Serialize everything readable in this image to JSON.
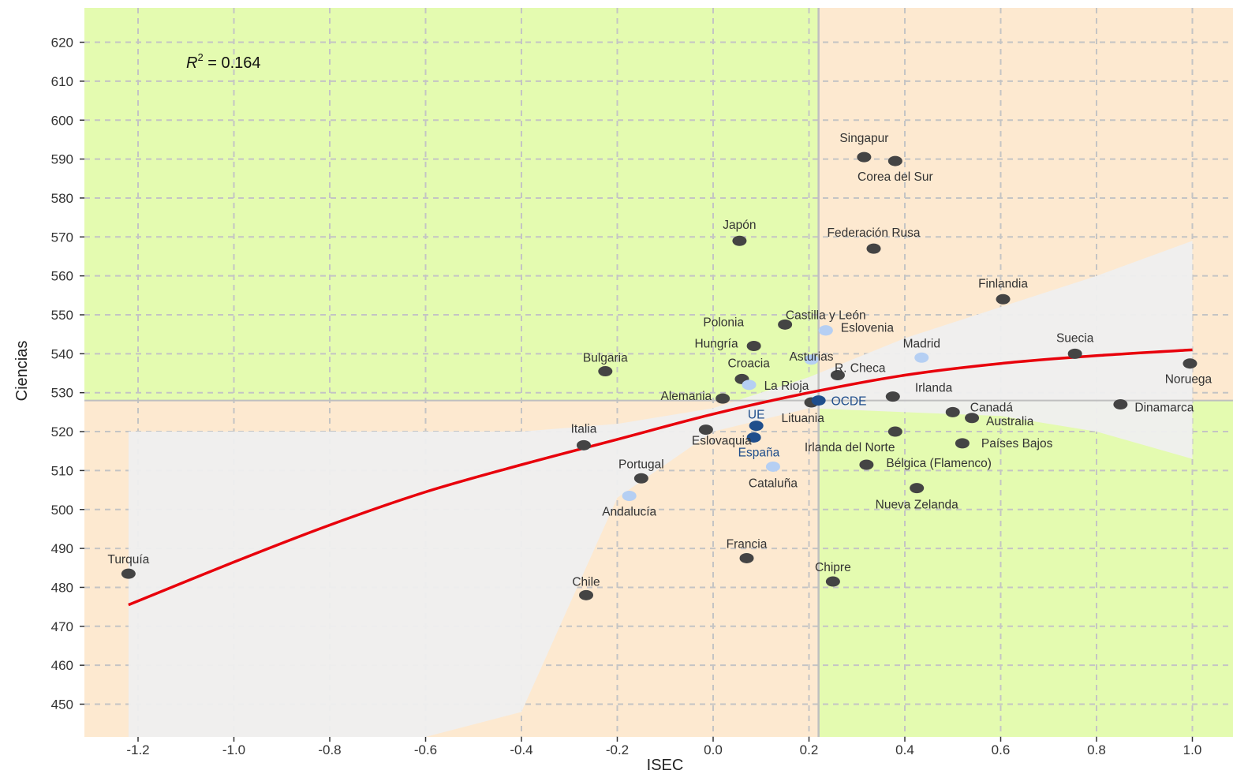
{
  "chart_data": {
    "type": "scatter",
    "title": "",
    "xlabel": "ISEC",
    "ylabel": "Ciencias",
    "xlim": [
      -1.3,
      1.08
    ],
    "ylim": [
      441,
      628
    ],
    "x_ticks": [
      -1.2,
      -1.0,
      -0.8,
      -0.6,
      -0.4,
      -0.2,
      0.0,
      0.2,
      0.4,
      0.6,
      0.8,
      1.0
    ],
    "x_tick_labels": [
      "-1.2",
      "-1.0",
      "-0.8",
      "-0.6",
      "-0.4",
      "-0.2",
      "0.0",
      "0.2",
      "0.4",
      "0.6",
      "0.8",
      "1.0"
    ],
    "y_ticks": [
      450,
      460,
      470,
      480,
      490,
      500,
      510,
      520,
      530,
      540,
      550,
      560,
      570,
      580,
      590,
      600,
      610,
      620
    ],
    "y_tick_labels": [
      "450",
      "460",
      "470",
      "480",
      "490",
      "500",
      "510",
      "520",
      "530",
      "540",
      "550",
      "560",
      "570",
      "580",
      "590",
      "600",
      "610",
      "620"
    ],
    "grid": true,
    "reference_lines": {
      "x": 0.22,
      "y": 528
    },
    "annotation": {
      "prefix": "R",
      "superscript": "2",
      "suffix": " = 0.164"
    },
    "colors": {
      "quadrant_green": "#e4fbb0",
      "quadrant_orange": "#fde9d0",
      "confidence_band": "#efefef",
      "fit_line": "#e8000b",
      "point_country": "#444444",
      "point_region": "#b5cff3",
      "point_aggregate": "#1f4e8c",
      "reference_line": "#bfbfbf"
    },
    "fit": {
      "x": [
        -1.22,
        -1.0,
        -0.8,
        -0.6,
        -0.4,
        -0.2,
        0.0,
        0.2,
        0.4,
        0.6,
        0.8,
        1.0
      ],
      "y": [
        475.5,
        486.5,
        496,
        504.5,
        511.5,
        518,
        524.5,
        530,
        534.5,
        537.5,
        539.5,
        541
      ],
      "lower": [
        441,
        441,
        441,
        441,
        448,
        503,
        520,
        526,
        525,
        524,
        520,
        513
      ],
      "upper": [
        520,
        520,
        520,
        520,
        520,
        522,
        526,
        534,
        544,
        552,
        560,
        569
      ]
    },
    "series": [
      {
        "group": "country",
        "points": [
          {
            "label": "Singapur",
            "x": 0.315,
            "y": 590.5
          },
          {
            "label": "Corea del Sur",
            "x": 0.38,
            "y": 589.5
          },
          {
            "label": "Japón",
            "x": 0.055,
            "y": 569
          },
          {
            "label": "Federación Rusa",
            "x": 0.335,
            "y": 567
          },
          {
            "label": "Finlandia",
            "x": 0.605,
            "y": 554
          },
          {
            "label": "Polonia",
            "x": 0.15,
            "y": 547.5
          },
          {
            "label": "Hungría",
            "x": 0.085,
            "y": 542
          },
          {
            "label": "Bulgaria",
            "x": -0.225,
            "y": 535.5
          },
          {
            "label": "Suecia",
            "x": 0.755,
            "y": 540
          },
          {
            "label": "Noruega",
            "x": 0.995,
            "y": 537.5
          },
          {
            "label": "R. Checa",
            "x": 0.26,
            "y": 534.5
          },
          {
            "label": "Croacia",
            "x": 0.06,
            "y": 533.5
          },
          {
            "label": "Alemania",
            "x": 0.02,
            "y": 528.5
          },
          {
            "label": "Lituania",
            "x": 0.205,
            "y": 527.5
          },
          {
            "label": "Irlanda",
            "x": 0.375,
            "y": 529
          },
          {
            "label": "Dinamarca",
            "x": 0.85,
            "y": 527
          },
          {
            "label": "Canadá",
            "x": 0.5,
            "y": 525
          },
          {
            "label": "Australia",
            "x": 0.54,
            "y": 523.5
          },
          {
            "label": "Italia",
            "x": -0.27,
            "y": 516.5
          },
          {
            "label": "Eslovaquia",
            "x": -0.015,
            "y": 520.5
          },
          {
            "label": "Irlanda del Norte",
            "x": 0.38,
            "y": 520
          },
          {
            "label": "Países Bajos",
            "x": 0.52,
            "y": 517
          },
          {
            "label": "Portugal",
            "x": -0.15,
            "y": 508
          },
          {
            "label": "Bélgica (Flamenco)",
            "x": 0.32,
            "y": 511.5
          },
          {
            "label": "Nueva Zelanda",
            "x": 0.425,
            "y": 505.5
          },
          {
            "label": "Francia",
            "x": 0.07,
            "y": 487.5
          },
          {
            "label": "Chipre",
            "x": 0.25,
            "y": 481.5
          },
          {
            "label": "Turquía",
            "x": -1.22,
            "y": 483.5
          },
          {
            "label": "Chile",
            "x": -0.265,
            "y": 478
          }
        ]
      },
      {
        "group": "region",
        "points": [
          {
            "label": "Castilla y León",
            "x": 0.235,
            "y": 546
          },
          {
            "label": "Eslovenia",
            "x": 0.235,
            "y": 546
          },
          {
            "label": "Madrid",
            "x": 0.435,
            "y": 539
          },
          {
            "label": "Asturias",
            "x": 0.205,
            "y": 538.5
          },
          {
            "label": "La Rioja",
            "x": 0.075,
            "y": 532
          },
          {
            "label": "Cataluña",
            "x": 0.125,
            "y": 511
          },
          {
            "label": "Andalucía",
            "x": -0.175,
            "y": 503.5
          }
        ]
      },
      {
        "group": "aggregate",
        "points": [
          {
            "label": "OCDE",
            "x": 0.22,
            "y": 528
          },
          {
            "label": "UE",
            "x": 0.09,
            "y": 521.5
          },
          {
            "label": "España",
            "x": 0.085,
            "y": 518.5
          }
        ]
      }
    ]
  }
}
